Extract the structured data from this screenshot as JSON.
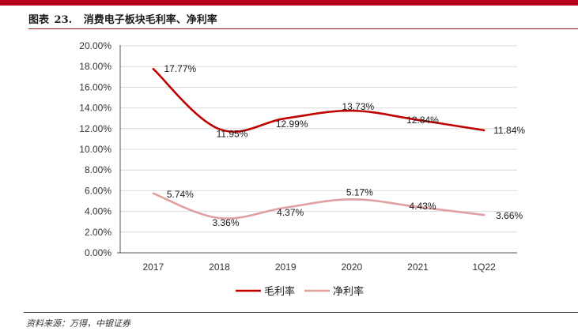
{
  "figure": {
    "label": "图表",
    "number": "23.",
    "title": "消费电子板块毛利率、净利率"
  },
  "source": "资料来源：万得，中银证券",
  "colors": {
    "accent": "#b8001f",
    "series_gross": "#c00000",
    "series_net": "#e0a0a0",
    "grid": "#d9d9d9",
    "axis": "#555555"
  },
  "chart_data": {
    "type": "line",
    "title": "消费电子板块毛利率、净利率",
    "categories": [
      "2017",
      "2018",
      "2019",
      "2020",
      "2021",
      "1Q22"
    ],
    "series": [
      {
        "name": "毛利率",
        "values": [
          17.77,
          11.95,
          12.99,
          13.73,
          12.84,
          11.84
        ],
        "labels": [
          "17.77%",
          "11.95%",
          "12.99%",
          "13.73%",
          "12.84%",
          "11.84%"
        ]
      },
      {
        "name": "净利率",
        "values": [
          5.74,
          3.36,
          4.37,
          5.17,
          4.43,
          3.66
        ],
        "labels": [
          "5.74%",
          "3.36%",
          "4.37%",
          "5.17%",
          "4.43%",
          "3.66%"
        ]
      }
    ],
    "ylim": [
      0,
      20
    ],
    "yticks": [
      "0.00%",
      "2.00%",
      "4.00%",
      "6.00%",
      "8.00%",
      "10.00%",
      "12.00%",
      "14.00%",
      "16.00%",
      "18.00%",
      "20.00%"
    ],
    "xlabel": "",
    "ylabel": "",
    "grid": true,
    "legend": "bottom-center",
    "smooth": true
  }
}
